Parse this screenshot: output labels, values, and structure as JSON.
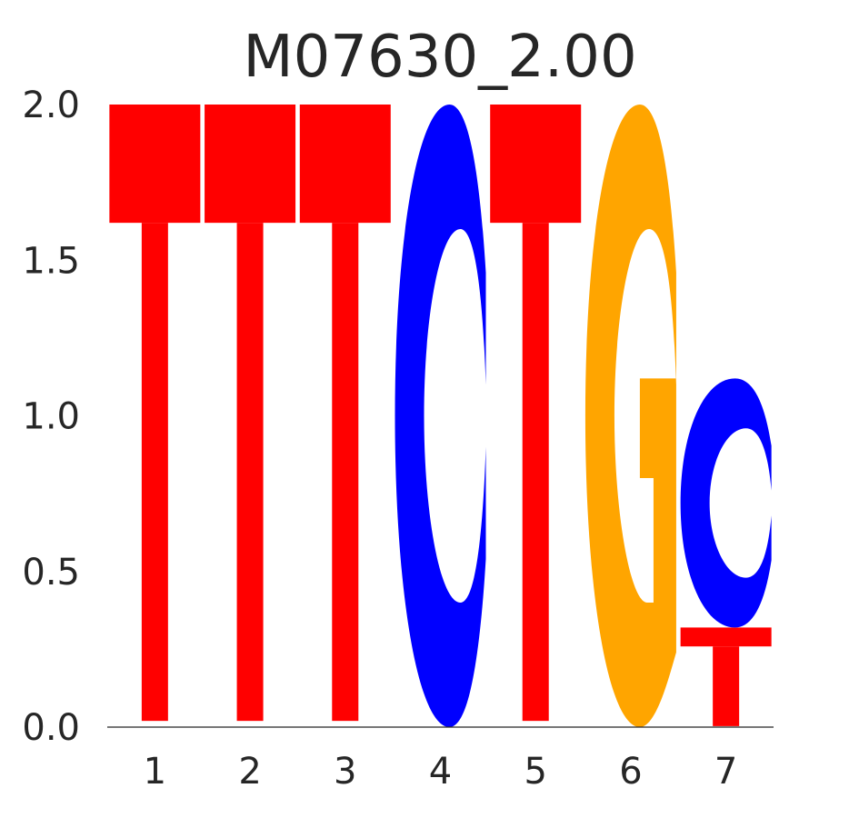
{
  "chart_data": {
    "type": "sequence-logo",
    "title": "M07630_2.00",
    "xlabel": "",
    "ylabel": "",
    "ylim": [
      0,
      2.0
    ],
    "y_ticks": [
      "0.0",
      "0.5",
      "1.0",
      "1.5",
      "2.0"
    ],
    "y_tick_values": [
      0,
      0.5,
      1.0,
      1.5,
      2.0
    ],
    "positions": [
      "1",
      "2",
      "3",
      "4",
      "5",
      "6",
      "7"
    ],
    "grid": false,
    "colors": {
      "A": "#00a000",
      "C": "#0000ff",
      "G": "#ffa500",
      "T": "#ff0000"
    },
    "stacks": [
      [
        {
          "letter": "T",
          "bits": 2.0
        }
      ],
      [
        {
          "letter": "T",
          "bits": 2.0
        }
      ],
      [
        {
          "letter": "T",
          "bits": 2.0
        }
      ],
      [
        {
          "letter": "C",
          "bits": 2.0
        }
      ],
      [
        {
          "letter": "T",
          "bits": 2.0
        }
      ],
      [
        {
          "letter": "G",
          "bits": 2.0
        }
      ],
      [
        {
          "letter": "T",
          "bits": 0.32
        },
        {
          "letter": "C",
          "bits": 0.8
        }
      ]
    ]
  }
}
